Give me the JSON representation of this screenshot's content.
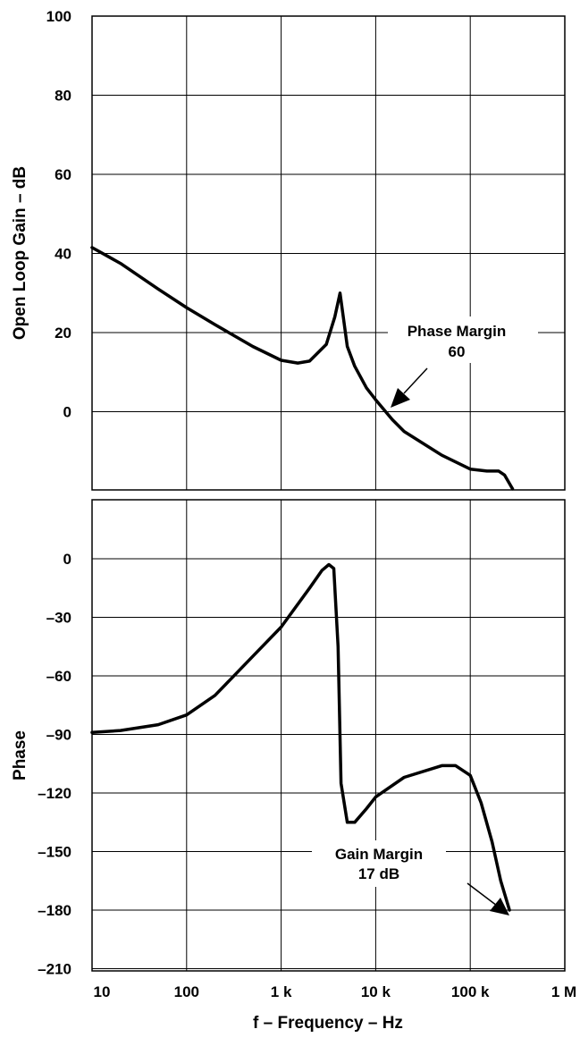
{
  "chart_data": [
    {
      "type": "line",
      "ylabel": "Open Loop Gain – dB",
      "x_scale": "log",
      "xlim": [
        10,
        1000000
      ],
      "ylim": [
        -20,
        100
      ],
      "yticks": [
        0,
        20,
        40,
        60,
        80,
        100
      ],
      "ytick_labels": [
        "0",
        "20",
        "40",
        "60",
        "80",
        "100"
      ],
      "grid": true,
      "series": [
        {
          "x": [
            10,
            20,
            50,
            100,
            200,
            500,
            1000,
            1500,
            2000,
            3000,
            3700,
            4200,
            4600,
            5000,
            6000,
            8000,
            10000,
            15000,
            20000,
            50000,
            100000,
            150000,
            200000,
            230000,
            280000
          ],
          "y": [
            41.5,
            37.5,
            31,
            26.3,
            22,
            16.5,
            13,
            12.3,
            12.8,
            17,
            24,
            30,
            23,
            16.5,
            11.5,
            6,
            3,
            -2,
            -5,
            -11,
            -14.5,
            -15,
            -15,
            -16,
            -19.5
          ]
        }
      ],
      "annotations": [
        {
          "line1": "Phase Margin",
          "line2": "60"
        }
      ]
    },
    {
      "type": "line",
      "ylabel": "Phase",
      "xlabel": "f – Frequency – Hz",
      "x_scale": "log",
      "xlim": [
        10,
        1000000
      ],
      "ylim": [
        -210,
        30
      ],
      "yticks": [
        -210,
        -180,
        -150,
        -120,
        -90,
        -60,
        -30,
        0
      ],
      "ytick_labels": [
        "–210",
        "–180",
        "–150",
        "–120",
        "–90",
        "–60",
        "–30",
        "0"
      ],
      "xticks": [
        10,
        100,
        1000,
        10000,
        100000,
        1000000
      ],
      "xtick_labels": [
        "10",
        "100",
        "1 k",
        "10 k",
        "100 k",
        "1 M"
      ],
      "grid": true,
      "series": [
        {
          "x": [
            10,
            20,
            50,
            100,
            200,
            500,
            1000,
            2000,
            2700,
            3200,
            3600,
            4000,
            4300,
            5000,
            6000,
            8000,
            10000,
            20000,
            50000,
            70000,
            100000,
            130000,
            170000,
            210000,
            260000
          ],
          "y": [
            -89,
            -88,
            -85,
            -80,
            -70,
            -50,
            -35,
            -15,
            -6,
            -3,
            -5,
            -45,
            -115,
            -135,
            -135,
            -128,
            -122,
            -112,
            -106,
            -106,
            -111,
            -125,
            -145,
            -165,
            -180
          ]
        }
      ],
      "annotations": [
        {
          "line1": "Gain Margin",
          "line2": "17 dB"
        }
      ]
    }
  ]
}
